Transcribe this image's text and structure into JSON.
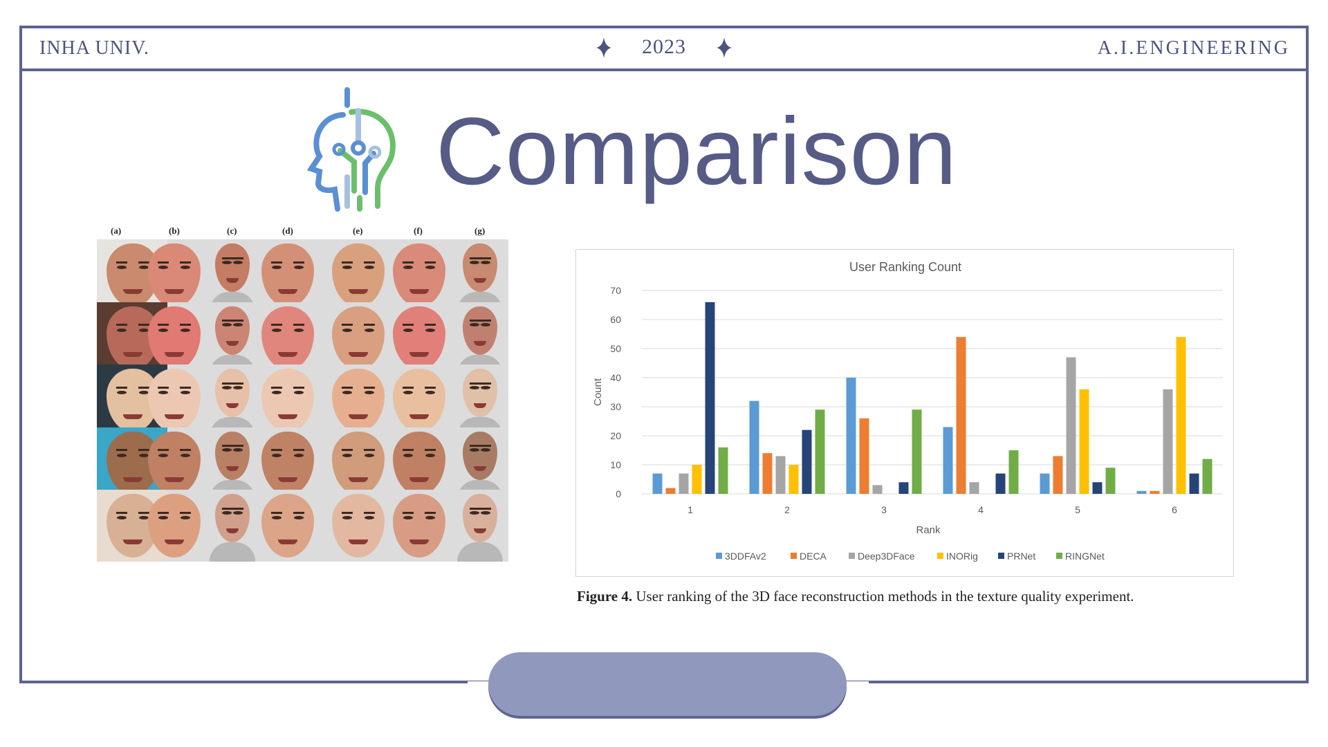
{
  "header": {
    "left": "INHA UNIV.",
    "year": "2023",
    "right": "A.I.ENGINEERING"
  },
  "title": "Comparison",
  "figure_left": {
    "column_labels": [
      "(a)",
      "(b)",
      "(c)",
      "(d)",
      "(e)",
      "(f)",
      "(g)"
    ]
  },
  "chart_data": {
    "type": "bar",
    "title": "User Ranking Count",
    "xlabel": "Rank",
    "ylabel": "Count",
    "ylim": [
      0,
      70
    ],
    "yticks": [
      0,
      10,
      20,
      30,
      40,
      50,
      60,
      70
    ],
    "categories": [
      "1",
      "2",
      "3",
      "4",
      "5",
      "6"
    ],
    "grid": true,
    "legend_position": "bottom",
    "series": [
      {
        "name": "3DDFAv2",
        "color": "#5b9bd5",
        "values": [
          7,
          32,
          40,
          23,
          7,
          1
        ]
      },
      {
        "name": "DECA",
        "color": "#ed7d31",
        "values": [
          2,
          14,
          26,
          54,
          13,
          1
        ]
      },
      {
        "name": "Deep3DFace",
        "color": "#a5a5a5",
        "values": [
          7,
          13,
          3,
          4,
          47,
          36
        ]
      },
      {
        "name": "INORig",
        "color": "#ffc000",
        "values": [
          10,
          10,
          0,
          0,
          36,
          54
        ]
      },
      {
        "name": "PRNet",
        "color": "#264478",
        "values": [
          66,
          22,
          4,
          7,
          4,
          7
        ]
      },
      {
        "name": "RINGNet",
        "color": "#70ad47",
        "values": [
          16,
          29,
          29,
          15,
          9,
          12
        ]
      }
    ]
  },
  "caption": {
    "label": "Figure 4.",
    "text": " User ranking of the 3D face reconstruction methods in the texture quality experiment."
  }
}
